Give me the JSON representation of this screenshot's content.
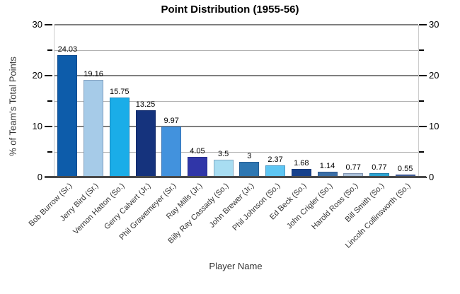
{
  "title": "Point Distribution (1955-56)",
  "chart_data": {
    "type": "bar",
    "title": "Point Distribution (1955-56)",
    "xlabel": "Player Name",
    "ylabel": "% of Team's Total Points",
    "ylim": [
      0,
      30
    ],
    "y_major_ticks": [
      0,
      10,
      20,
      30
    ],
    "y_minor_ticks": [
      5,
      15,
      25
    ],
    "grid": true,
    "legend": "none",
    "categories": [
      "Bob Burrow (Sr.)",
      "Jerry Bird (Sr.)",
      "Vernon Hatton (So.)",
      "Gerry Calvert (Jr.)",
      "Phil Grawemeyer (Sr.)",
      "Ray Mills (Jr.)",
      "Billy Ray Cassady (So.)",
      "John Brewer (Jr.)",
      "Phil Johnson (So.)",
      "Ed Beck (So.)",
      "John Crigler (So.)",
      "Harold Ross (So.)",
      "Bill Smith (So.)",
      "Lincoln Collinsworth (So.)"
    ],
    "values": [
      24.03,
      19.16,
      15.75,
      13.25,
      9.97,
      4.05,
      3.5,
      3,
      2.37,
      1.68,
      1.14,
      0.77,
      0.77,
      0.55
    ],
    "value_labels": [
      "24.03",
      "19.16",
      "15.75",
      "13.25",
      "9.97",
      "4.05",
      "3.5",
      "3",
      "2.37",
      "1.68",
      "1.14",
      "0.77",
      "0.77",
      "0.55"
    ],
    "bar_colors": [
      "#0d5caa",
      "#a6cbe8",
      "#1aade8",
      "#15337d",
      "#4292dd",
      "#3036a8",
      "#a8ddf2",
      "#2e77b2",
      "#5ec6f3",
      "#16418c",
      "#3a6ea6",
      "#a9bfd8",
      "#29a3d2",
      "#3f5c99"
    ]
  }
}
